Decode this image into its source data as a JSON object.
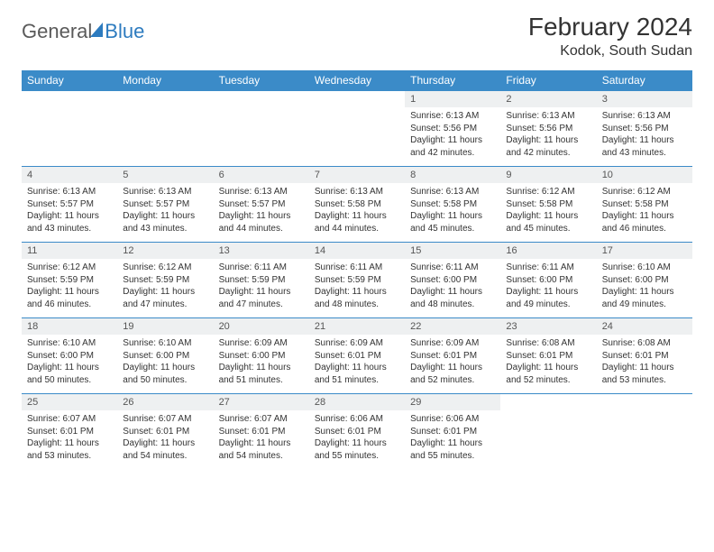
{
  "logo": {
    "part1": "General",
    "part2": "Blue"
  },
  "title": "February 2024",
  "location": "Kodok, South Sudan",
  "colors": {
    "header_bg": "#3b8bc8",
    "header_text": "#ffffff",
    "daynum_bg": "#eef0f1",
    "border": "#3b8bc8",
    "logo_gray": "#5a5a5a",
    "logo_blue": "#2d7bbf"
  },
  "typography": {
    "title_fontsize": 28,
    "location_fontsize": 16,
    "dayheader_fontsize": 12,
    "cell_fontsize": 10
  },
  "day_headers": [
    "Sunday",
    "Monday",
    "Tuesday",
    "Wednesday",
    "Thursday",
    "Friday",
    "Saturday"
  ],
  "weeks": [
    [
      null,
      null,
      null,
      null,
      {
        "n": "1",
        "sunrise": "6:13 AM",
        "sunset": "5:56 PM",
        "daylight": "11 hours and 42 minutes."
      },
      {
        "n": "2",
        "sunrise": "6:13 AM",
        "sunset": "5:56 PM",
        "daylight": "11 hours and 42 minutes."
      },
      {
        "n": "3",
        "sunrise": "6:13 AM",
        "sunset": "5:56 PM",
        "daylight": "11 hours and 43 minutes."
      }
    ],
    [
      {
        "n": "4",
        "sunrise": "6:13 AM",
        "sunset": "5:57 PM",
        "daylight": "11 hours and 43 minutes."
      },
      {
        "n": "5",
        "sunrise": "6:13 AM",
        "sunset": "5:57 PM",
        "daylight": "11 hours and 43 minutes."
      },
      {
        "n": "6",
        "sunrise": "6:13 AM",
        "sunset": "5:57 PM",
        "daylight": "11 hours and 44 minutes."
      },
      {
        "n": "7",
        "sunrise": "6:13 AM",
        "sunset": "5:58 PM",
        "daylight": "11 hours and 44 minutes."
      },
      {
        "n": "8",
        "sunrise": "6:13 AM",
        "sunset": "5:58 PM",
        "daylight": "11 hours and 45 minutes."
      },
      {
        "n": "9",
        "sunrise": "6:12 AM",
        "sunset": "5:58 PM",
        "daylight": "11 hours and 45 minutes."
      },
      {
        "n": "10",
        "sunrise": "6:12 AM",
        "sunset": "5:58 PM",
        "daylight": "11 hours and 46 minutes."
      }
    ],
    [
      {
        "n": "11",
        "sunrise": "6:12 AM",
        "sunset": "5:59 PM",
        "daylight": "11 hours and 46 minutes."
      },
      {
        "n": "12",
        "sunrise": "6:12 AM",
        "sunset": "5:59 PM",
        "daylight": "11 hours and 47 minutes."
      },
      {
        "n": "13",
        "sunrise": "6:11 AM",
        "sunset": "5:59 PM",
        "daylight": "11 hours and 47 minutes."
      },
      {
        "n": "14",
        "sunrise": "6:11 AM",
        "sunset": "5:59 PM",
        "daylight": "11 hours and 48 minutes."
      },
      {
        "n": "15",
        "sunrise": "6:11 AM",
        "sunset": "6:00 PM",
        "daylight": "11 hours and 48 minutes."
      },
      {
        "n": "16",
        "sunrise": "6:11 AM",
        "sunset": "6:00 PM",
        "daylight": "11 hours and 49 minutes."
      },
      {
        "n": "17",
        "sunrise": "6:10 AM",
        "sunset": "6:00 PM",
        "daylight": "11 hours and 49 minutes."
      }
    ],
    [
      {
        "n": "18",
        "sunrise": "6:10 AM",
        "sunset": "6:00 PM",
        "daylight": "11 hours and 50 minutes."
      },
      {
        "n": "19",
        "sunrise": "6:10 AM",
        "sunset": "6:00 PM",
        "daylight": "11 hours and 50 minutes."
      },
      {
        "n": "20",
        "sunrise": "6:09 AM",
        "sunset": "6:00 PM",
        "daylight": "11 hours and 51 minutes."
      },
      {
        "n": "21",
        "sunrise": "6:09 AM",
        "sunset": "6:01 PM",
        "daylight": "11 hours and 51 minutes."
      },
      {
        "n": "22",
        "sunrise": "6:09 AM",
        "sunset": "6:01 PM",
        "daylight": "11 hours and 52 minutes."
      },
      {
        "n": "23",
        "sunrise": "6:08 AM",
        "sunset": "6:01 PM",
        "daylight": "11 hours and 52 minutes."
      },
      {
        "n": "24",
        "sunrise": "6:08 AM",
        "sunset": "6:01 PM",
        "daylight": "11 hours and 53 minutes."
      }
    ],
    [
      {
        "n": "25",
        "sunrise": "6:07 AM",
        "sunset": "6:01 PM",
        "daylight": "11 hours and 53 minutes."
      },
      {
        "n": "26",
        "sunrise": "6:07 AM",
        "sunset": "6:01 PM",
        "daylight": "11 hours and 54 minutes."
      },
      {
        "n": "27",
        "sunrise": "6:07 AM",
        "sunset": "6:01 PM",
        "daylight": "11 hours and 54 minutes."
      },
      {
        "n": "28",
        "sunrise": "6:06 AM",
        "sunset": "6:01 PM",
        "daylight": "11 hours and 55 minutes."
      },
      {
        "n": "29",
        "sunrise": "6:06 AM",
        "sunset": "6:01 PM",
        "daylight": "11 hours and 55 minutes."
      },
      null,
      null
    ]
  ],
  "labels": {
    "sunrise": "Sunrise: ",
    "sunset": "Sunset: ",
    "daylight": "Daylight: "
  }
}
